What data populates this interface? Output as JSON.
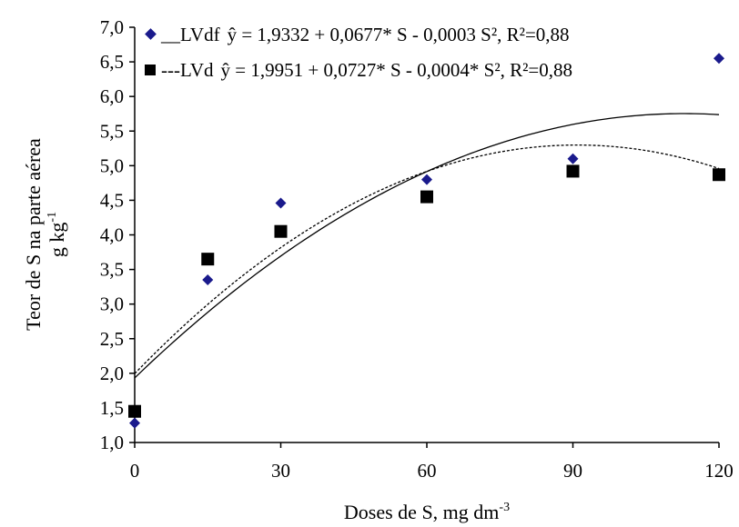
{
  "chart_data": {
    "type": "scatter",
    "xlabel": "Doses de S, mg dm",
    "xlabel_sup": "-3",
    "ylabel_line1": "Teor de S na parte aérea",
    "ylabel_line2": "g kg",
    "ylabel_line2_sup": "-1",
    "xlim": [
      0,
      120
    ],
    "ylim": [
      1.0,
      7.0
    ],
    "x_ticks": [
      0,
      30,
      60,
      90,
      120
    ],
    "x_tick_labels": [
      "0",
      "30",
      "60",
      "90",
      "120"
    ],
    "y_ticks": [
      1.0,
      1.5,
      2.0,
      2.5,
      3.0,
      3.5,
      4.0,
      4.5,
      5.0,
      5.5,
      6.0,
      6.5,
      7.0
    ],
    "y_tick_labels": [
      "1,0",
      "1,5",
      "2,0",
      "2,5",
      "3,0",
      "3,5",
      "4,0",
      "4,5",
      "5,0",
      "5,5",
      "6,0",
      "6,5",
      "7,0"
    ],
    "grid": false,
    "legend_position": "top-left",
    "series": [
      {
        "name": "LVdf",
        "legend_prefix": "__LVdf",
        "equation": "ŷ = 1,9332 + 0,0677* S - 0,0003 S², R²=0,88",
        "marker": "diamond",
        "color": "#1a1a8c",
        "line_style": "solid",
        "coefficients": [
          1.9332,
          0.0677,
          -0.0003
        ],
        "x": [
          0,
          15,
          30,
          60,
          90,
          120
        ],
        "y": [
          1.28,
          3.35,
          4.46,
          4.8,
          5.1,
          6.55
        ]
      },
      {
        "name": "LVd",
        "legend_prefix": "---LVd",
        "equation": "ŷ = 1,9951 + 0,0727* S - 0,0004* S², R²=0,88",
        "marker": "square",
        "color": "#000000",
        "line_style": "dashed",
        "coefficients": [
          1.9951,
          0.0727,
          -0.0004
        ],
        "x": [
          0,
          15,
          30,
          60,
          90,
          120
        ],
        "y": [
          1.45,
          3.65,
          4.05,
          4.55,
          4.92,
          4.87
        ]
      }
    ]
  }
}
